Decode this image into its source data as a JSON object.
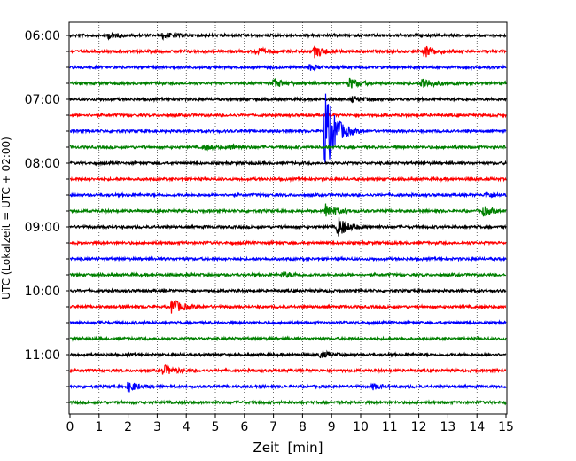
{
  "chart_data": {
    "type": "line",
    "xlabel": "Zeit  [min]",
    "ylabel": "UTC (Lokalzeit = UTC + 02:00)",
    "xlim": [
      0,
      15
    ],
    "x_ticks": [
      "0",
      "1",
      "2",
      "3",
      "4",
      "5",
      "6",
      "7",
      "8",
      "9",
      "10",
      "11",
      "12",
      "13",
      "14",
      "15"
    ],
    "y_tick_labels": [
      "06:00",
      "07:00",
      "08:00",
      "09:00",
      "10:00",
      "11:00"
    ],
    "grid": "vertical dotted lines at each minute",
    "trace_interval_min": 15,
    "colors": [
      "#000000",
      "#ff0000",
      "#0000ff",
      "#008000"
    ],
    "traces": [
      {
        "start": "06:00",
        "color": "#000000",
        "events": [
          {
            "t": 1.3,
            "amp": 3
          },
          {
            "t": 3.2,
            "amp": 4
          }
        ]
      },
      {
        "start": "06:15",
        "color": "#ff0000",
        "events": [
          {
            "t": 6.4,
            "amp": 4
          },
          {
            "t": 8.4,
            "amp": 6
          },
          {
            "t": 12.2,
            "amp": 7
          }
        ]
      },
      {
        "start": "06:30",
        "color": "#0000ff",
        "events": [
          {
            "t": 8.2,
            "amp": 3
          }
        ]
      },
      {
        "start": "06:45",
        "color": "#008000",
        "events": [
          {
            "t": 7.0,
            "amp": 5
          },
          {
            "t": 9.6,
            "amp": 6
          },
          {
            "t": 12.1,
            "amp": 7
          }
        ]
      },
      {
        "start": "07:00",
        "color": "#000000",
        "events": [
          {
            "t": 9.7,
            "amp": 3
          }
        ]
      },
      {
        "start": "07:15",
        "color": "#ff0000",
        "events": []
      },
      {
        "start": "07:30",
        "color": "#0000ff",
        "events": [
          {
            "t": 8.75,
            "amp": 55
          }
        ]
      },
      {
        "start": "07:45",
        "color": "#008000",
        "events": [
          {
            "t": 4.6,
            "amp": 3
          },
          {
            "t": 5.5,
            "amp": 3
          }
        ]
      },
      {
        "start": "08:00",
        "color": "#000000",
        "events": []
      },
      {
        "start": "08:15",
        "color": "#ff0000",
        "events": []
      },
      {
        "start": "08:30",
        "color": "#0000ff",
        "events": [
          {
            "t": 14.3,
            "amp": 3
          }
        ]
      },
      {
        "start": "08:45",
        "color": "#008000",
        "events": [
          {
            "t": 8.8,
            "amp": 9
          },
          {
            "t": 14.2,
            "amp": 5
          }
        ]
      },
      {
        "start": "09:00",
        "color": "#000000",
        "events": [
          {
            "t": 9.2,
            "amp": 12
          }
        ]
      },
      {
        "start": "09:15",
        "color": "#ff0000",
        "events": []
      },
      {
        "start": "09:30",
        "color": "#0000ff",
        "events": []
      },
      {
        "start": "09:45",
        "color": "#008000",
        "events": [
          {
            "t": 7.3,
            "amp": 3
          }
        ]
      },
      {
        "start": "10:00",
        "color": "#000000",
        "events": []
      },
      {
        "start": "10:15",
        "color": "#ff0000",
        "events": [
          {
            "t": 3.5,
            "amp": 9
          }
        ]
      },
      {
        "start": "10:30",
        "color": "#0000ff",
        "events": []
      },
      {
        "start": "10:45",
        "color": "#008000",
        "events": []
      },
      {
        "start": "11:00",
        "color": "#000000",
        "events": [
          {
            "t": 8.6,
            "amp": 4
          }
        ]
      },
      {
        "start": "11:15",
        "color": "#ff0000",
        "events": [
          {
            "t": 3.2,
            "amp": 6
          }
        ]
      },
      {
        "start": "11:30",
        "color": "#0000ff",
        "events": [
          {
            "t": 2.0,
            "amp": 6
          },
          {
            "t": 10.4,
            "amp": 3
          }
        ]
      },
      {
        "start": "11:45",
        "color": "#008000",
        "events": []
      }
    ]
  }
}
